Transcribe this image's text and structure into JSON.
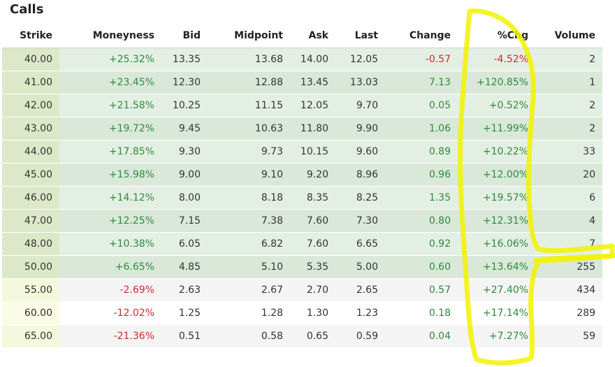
{
  "title": "Calls",
  "columns": [
    "Strike",
    "Moneyness",
    "Bid",
    "Midpoint",
    "Ask",
    "Last",
    "Change",
    "%Chg",
    "Volume"
  ],
  "colors": {
    "positive": "#2e8b3a",
    "negative": "#d02a2a",
    "highlighter": "#f2f200"
  },
  "rows": [
    {
      "strike": "40.00",
      "moneyness": "+25.32%",
      "bid": "13.35",
      "midpoint": "13.68",
      "ask": "14.00",
      "last": "12.05",
      "change": "-0.57",
      "pct_chg": "-4.52%",
      "volume": "2"
    },
    {
      "strike": "41.00",
      "moneyness": "+23.45%",
      "bid": "12.30",
      "midpoint": "12.88",
      "ask": "13.45",
      "last": "13.03",
      "change": "7.13",
      "pct_chg": "+120.85%",
      "volume": "1"
    },
    {
      "strike": "42.00",
      "moneyness": "+21.58%",
      "bid": "10.25",
      "midpoint": "11.15",
      "ask": "12.05",
      "last": "9.70",
      "change": "0.05",
      "pct_chg": "+0.52%",
      "volume": "2"
    },
    {
      "strike": "43.00",
      "moneyness": "+19.72%",
      "bid": "9.45",
      "midpoint": "10.63",
      "ask": "11.80",
      "last": "9.90",
      "change": "1.06",
      "pct_chg": "+11.99%",
      "volume": "2"
    },
    {
      "strike": "44.00",
      "moneyness": "+17.85%",
      "bid": "9.30",
      "midpoint": "9.73",
      "ask": "10.15",
      "last": "9.60",
      "change": "0.89",
      "pct_chg": "+10.22%",
      "volume": "33"
    },
    {
      "strike": "45.00",
      "moneyness": "+15.98%",
      "bid": "9.00",
      "midpoint": "9.10",
      "ask": "9.20",
      "last": "8.96",
      "change": "0.96",
      "pct_chg": "+12.00%",
      "volume": "20"
    },
    {
      "strike": "46.00",
      "moneyness": "+14.12%",
      "bid": "8.00",
      "midpoint": "8.18",
      "ask": "8.35",
      "last": "8.25",
      "change": "1.35",
      "pct_chg": "+19.57%",
      "volume": "6"
    },
    {
      "strike": "47.00",
      "moneyness": "+12.25%",
      "bid": "7.15",
      "midpoint": "7.38",
      "ask": "7.60",
      "last": "7.30",
      "change": "0.80",
      "pct_chg": "+12.31%",
      "volume": "4"
    },
    {
      "strike": "48.00",
      "moneyness": "+10.38%",
      "bid": "6.05",
      "midpoint": "6.82",
      "ask": "7.60",
      "last": "6.65",
      "change": "0.92",
      "pct_chg": "+16.06%",
      "volume": "7"
    },
    {
      "strike": "50.00",
      "moneyness": "+6.65%",
      "bid": "4.85",
      "midpoint": "5.10",
      "ask": "5.35",
      "last": "5.00",
      "change": "0.60",
      "pct_chg": "+13.64%",
      "volume": "255"
    },
    {
      "strike": "55.00",
      "moneyness": "-2.69%",
      "bid": "2.63",
      "midpoint": "2.67",
      "ask": "2.70",
      "last": "2.65",
      "change": "0.57",
      "pct_chg": "+27.40%",
      "volume": "434"
    },
    {
      "strike": "60.00",
      "moneyness": "-12.02%",
      "bid": "1.25",
      "midpoint": "1.28",
      "ask": "1.30",
      "last": "1.23",
      "change": "0.18",
      "pct_chg": "+17.14%",
      "volume": "289"
    },
    {
      "strike": "65.00",
      "moneyness": "-21.36%",
      "bid": "0.51",
      "midpoint": "0.58",
      "ask": "0.65",
      "last": "0.59",
      "change": "0.04",
      "pct_chg": "+7.27%",
      "volume": "59"
    }
  ]
}
